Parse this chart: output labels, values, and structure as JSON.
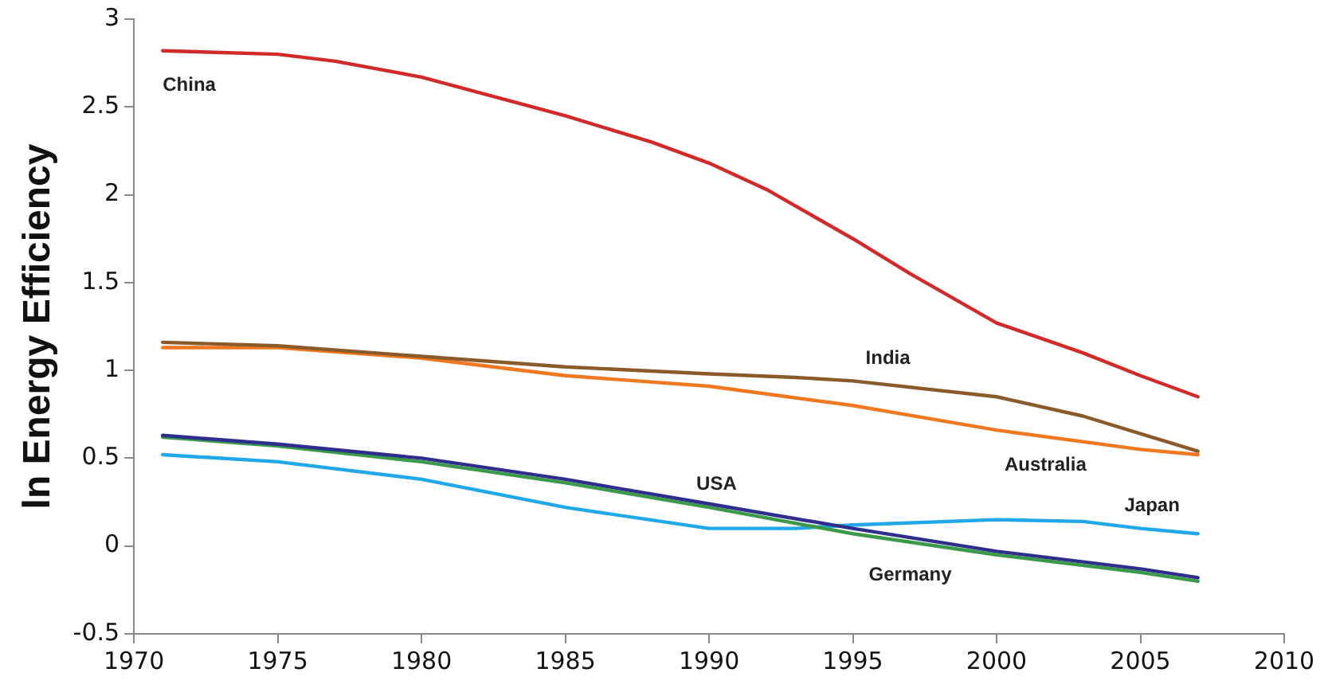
{
  "chart_data": {
    "type": "line",
    "ylabel": "ln Energy Efficiency",
    "xlim": [
      1970,
      2010
    ],
    "xticks": [
      1970,
      1975,
      1980,
      1985,
      1990,
      1995,
      2000,
      2005,
      2010
    ],
    "ylim": [
      -0.5,
      3
    ],
    "yticks": [
      -0.5,
      0,
      0.5,
      1,
      1.5,
      2,
      2.5,
      3
    ],
    "grid": false,
    "legend": false,
    "marker": "none",
    "line_style": "solid",
    "series": [
      {
        "name": "China",
        "color": "#d02a2a",
        "x": [
          1971,
          1975,
          1977,
          1980,
          1985,
          1988,
          1990,
          1992,
          1995,
          1997,
          2000,
          2003,
          2005,
          2007
        ],
        "values": [
          2.82,
          2.8,
          2.76,
          2.67,
          2.45,
          2.3,
          2.18,
          2.03,
          1.75,
          1.55,
          1.27,
          1.1,
          0.97,
          0.85
        ]
      },
      {
        "name": "India",
        "color": "#8b5a2b",
        "x": [
          1971,
          1975,
          1980,
          1985,
          1990,
          1993,
          1995,
          2000,
          2003,
          2005,
          2007
        ],
        "values": [
          1.16,
          1.14,
          1.08,
          1.02,
          0.98,
          0.96,
          0.94,
          0.85,
          0.74,
          0.64,
          0.54
        ]
      },
      {
        "name": "Australia",
        "color": "#f07820",
        "x": [
          1971,
          1975,
          1980,
          1985,
          1990,
          1995,
          2000,
          2005,
          2007
        ],
        "values": [
          1.13,
          1.13,
          1.07,
          0.97,
          0.91,
          0.8,
          0.66,
          0.55,
          0.52
        ]
      },
      {
        "name": "USA",
        "color": "#2e2e8c",
        "x": [
          1971,
          1975,
          1980,
          1985,
          1990,
          1995,
          2000,
          2005,
          2007
        ],
        "values": [
          0.63,
          0.58,
          0.5,
          0.38,
          0.24,
          0.1,
          -0.03,
          -0.13,
          -0.18
        ]
      },
      {
        "name": "Germany",
        "color": "#3a9a4a",
        "x": [
          1971,
          1975,
          1980,
          1985,
          1990,
          1995,
          2000,
          2005,
          2007
        ],
        "values": [
          0.62,
          0.57,
          0.48,
          0.36,
          0.22,
          0.07,
          -0.05,
          -0.15,
          -0.2
        ]
      },
      {
        "name": "Japan",
        "color": "#20a8e8",
        "x": [
          1971,
          1975,
          1980,
          1985,
          1990,
          1993,
          1995,
          2000,
          2003,
          2005,
          2007
        ],
        "values": [
          0.52,
          0.48,
          0.38,
          0.22,
          0.1,
          0.1,
          0.12,
          0.15,
          0.14,
          0.1,
          0.07
        ]
      }
    ]
  }
}
